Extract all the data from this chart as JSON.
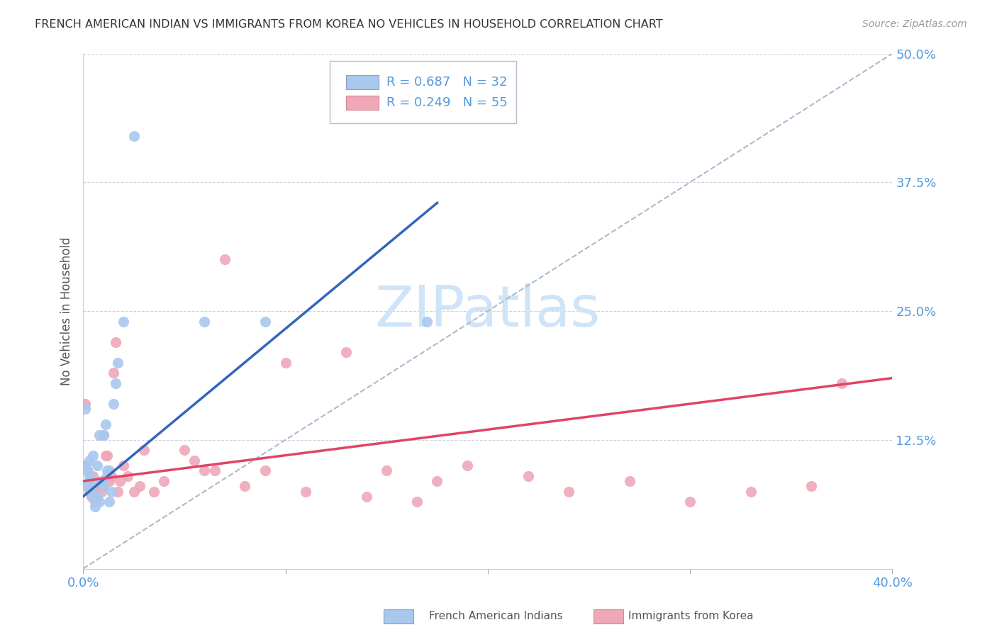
{
  "title": "FRENCH AMERICAN INDIAN VS IMMIGRANTS FROM KOREA NO VEHICLES IN HOUSEHOLD CORRELATION CHART",
  "source": "Source: ZipAtlas.com",
  "ylabel": "No Vehicles in Household",
  "yticks": [
    0.0,
    0.125,
    0.25,
    0.375,
    0.5
  ],
  "ytick_labels": [
    "",
    "12.5%",
    "25.0%",
    "37.5%",
    "50.0%"
  ],
  "xlim": [
    0.0,
    0.4
  ],
  "ylim": [
    0.0,
    0.5
  ],
  "legend_blue_r": "R = 0.687",
  "legend_blue_n": "N = 32",
  "legend_pink_r": "R = 0.249",
  "legend_pink_n": "N = 55",
  "legend_label_blue": "French American Indians",
  "legend_label_pink": "Immigrants from Korea",
  "blue_color": "#A8C8EE",
  "pink_color": "#F0A8B8",
  "blue_line_color": "#3366BB",
  "pink_line_color": "#E04466",
  "ref_line_color": "#AABBCC",
  "axis_label_color": "#5599DD",
  "watermark_color": "#D0E4F8",
  "blue_points_x": [
    0.001,
    0.001,
    0.002,
    0.002,
    0.003,
    0.003,
    0.004,
    0.004,
    0.005,
    0.005,
    0.006,
    0.006,
    0.007,
    0.007,
    0.008,
    0.008,
    0.009,
    0.01,
    0.01,
    0.011,
    0.012,
    0.013,
    0.013,
    0.014,
    0.015,
    0.016,
    0.017,
    0.02,
    0.025,
    0.06,
    0.09,
    0.17
  ],
  "blue_points_y": [
    0.155,
    0.1,
    0.095,
    0.08,
    0.105,
    0.09,
    0.085,
    0.075,
    0.11,
    0.07,
    0.085,
    0.06,
    0.1,
    0.07,
    0.13,
    0.065,
    0.085,
    0.13,
    0.08,
    0.14,
    0.095,
    0.065,
    0.095,
    0.075,
    0.16,
    0.18,
    0.2,
    0.24,
    0.42,
    0.24,
    0.24,
    0.24
  ],
  "pink_points_x": [
    0.001,
    0.001,
    0.002,
    0.002,
    0.003,
    0.003,
    0.004,
    0.004,
    0.005,
    0.005,
    0.006,
    0.006,
    0.007,
    0.008,
    0.009,
    0.01,
    0.01,
    0.011,
    0.012,
    0.012,
    0.013,
    0.014,
    0.015,
    0.016,
    0.017,
    0.018,
    0.02,
    0.022,
    0.025,
    0.028,
    0.03,
    0.035,
    0.04,
    0.05,
    0.055,
    0.06,
    0.065,
    0.07,
    0.08,
    0.09,
    0.1,
    0.11,
    0.13,
    0.14,
    0.15,
    0.165,
    0.175,
    0.19,
    0.22,
    0.24,
    0.27,
    0.3,
    0.33,
    0.36,
    0.375
  ],
  "pink_points_y": [
    0.16,
    0.1,
    0.095,
    0.08,
    0.085,
    0.075,
    0.085,
    0.07,
    0.09,
    0.075,
    0.08,
    0.065,
    0.08,
    0.08,
    0.075,
    0.13,
    0.08,
    0.11,
    0.11,
    0.09,
    0.085,
    0.09,
    0.19,
    0.22,
    0.075,
    0.085,
    0.1,
    0.09,
    0.075,
    0.08,
    0.115,
    0.075,
    0.085,
    0.115,
    0.105,
    0.095,
    0.095,
    0.3,
    0.08,
    0.095,
    0.2,
    0.075,
    0.21,
    0.07,
    0.095,
    0.065,
    0.085,
    0.1,
    0.09,
    0.075,
    0.085,
    0.065,
    0.075,
    0.08,
    0.18
  ],
  "blue_line_x0": 0.0,
  "blue_line_x1": 0.175,
  "blue_line_y0": 0.07,
  "blue_line_y1": 0.355,
  "pink_line_x0": 0.0,
  "pink_line_x1": 0.4,
  "pink_line_y0": 0.085,
  "pink_line_y1": 0.185,
  "ref_line_x0": 0.0,
  "ref_line_x1": 0.4,
  "ref_line_y0": 0.0,
  "ref_line_y1": 0.5
}
